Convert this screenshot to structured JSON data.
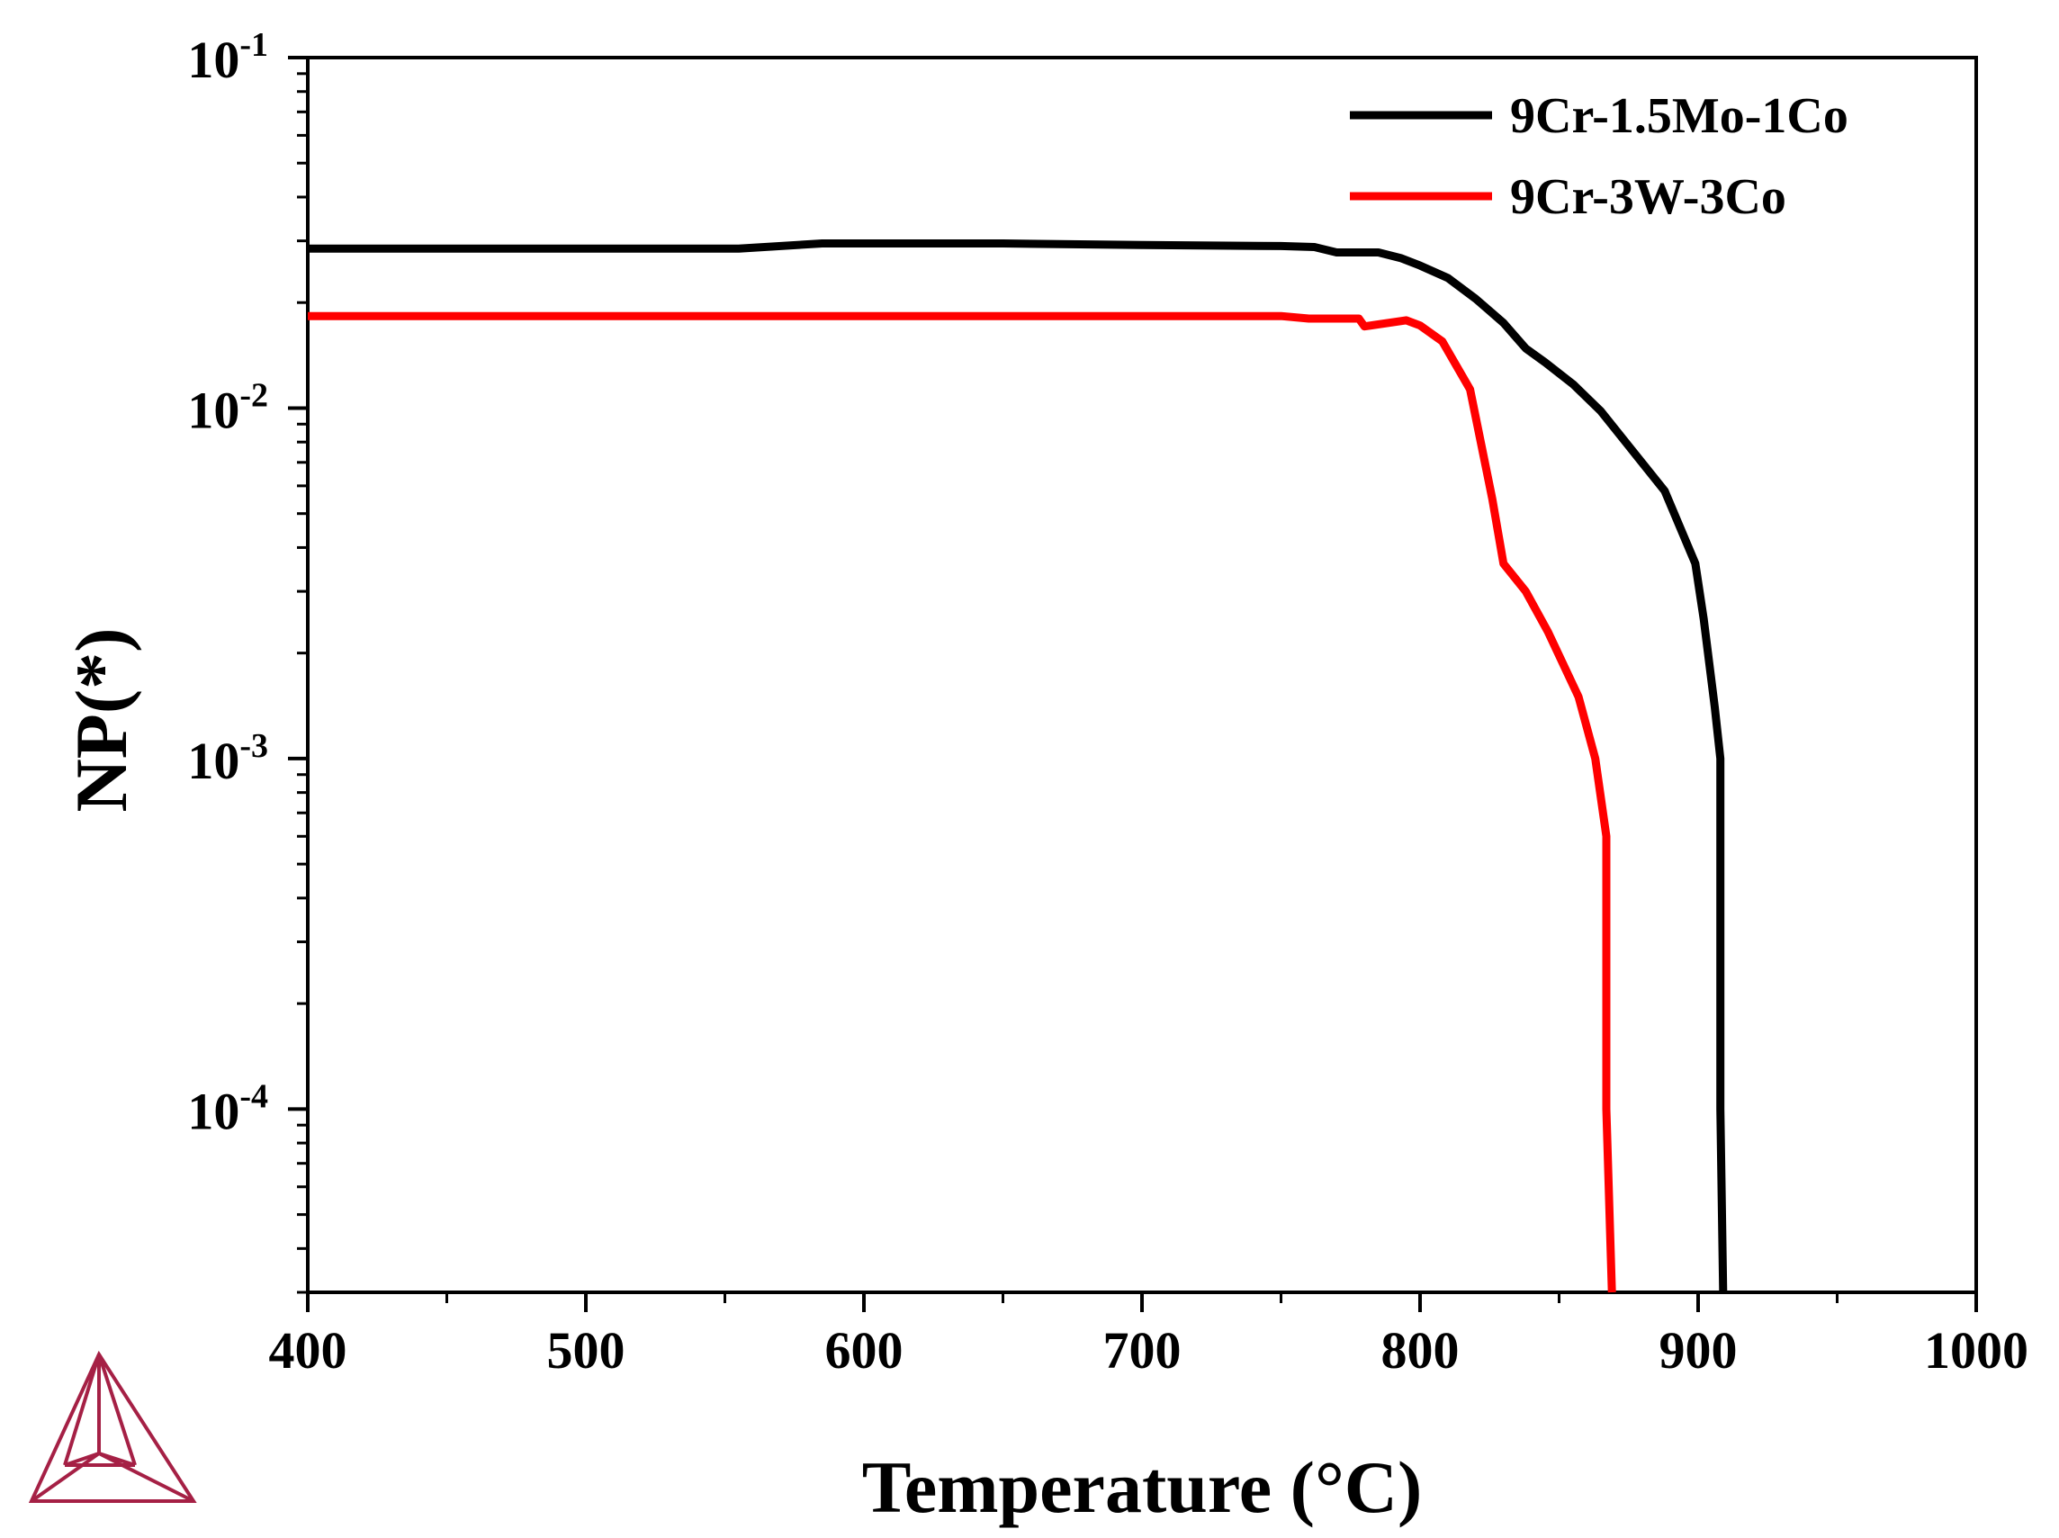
{
  "chart_data": {
    "type": "line",
    "title": "",
    "xlabel": "Temperature (°C)",
    "ylabel": "NP(*)",
    "xlim": [
      400,
      1000
    ],
    "ylim": [
      3e-05,
      0.1
    ],
    "yscale": "log",
    "x_ticks": [
      {
        "value": 400,
        "label": "400"
      },
      {
        "value": 500,
        "label": "500"
      },
      {
        "value": 600,
        "label": "600"
      },
      {
        "value": 700,
        "label": "700"
      },
      {
        "value": 800,
        "label": "800"
      },
      {
        "value": 900,
        "label": "900"
      },
      {
        "value": 1000,
        "label": "1000"
      }
    ],
    "y_ticks": [
      {
        "value": 0.1,
        "base": "10",
        "exp": "-1"
      },
      {
        "value": 0.01,
        "base": "10",
        "exp": "-2"
      },
      {
        "value": 0.001,
        "base": "10",
        "exp": "-3"
      },
      {
        "value": 0.0001,
        "base": "10",
        "exp": "-4"
      }
    ],
    "legend_position": "top-right",
    "series": [
      {
        "name": "9Cr-1.5Mo-1Co",
        "color": "#000000",
        "x": [
          400,
          500,
          555,
          585,
          650,
          700,
          750,
          762,
          770,
          785,
          793,
          800,
          810,
          820,
          830,
          838,
          845,
          855,
          865,
          875,
          888,
          899,
          902,
          906,
          908,
          908,
          909
        ],
        "y": [
          0.0285,
          0.0285,
          0.0285,
          0.0295,
          0.0295,
          0.0292,
          0.029,
          0.0288,
          0.0278,
          0.0278,
          0.0268,
          0.0255,
          0.0235,
          0.0205,
          0.0175,
          0.0148,
          0.0135,
          0.0117,
          0.0098,
          0.0078,
          0.0058,
          0.0036,
          0.0025,
          0.0014,
          0.001,
          0.0001,
          3e-05
        ]
      },
      {
        "name": "9Cr-3W-3Co",
        "color": "#ff0000",
        "x": [
          400,
          500,
          600,
          700,
          750,
          760,
          778,
          780,
          795,
          800,
          808,
          818,
          826,
          830,
          838,
          846,
          857,
          863,
          867,
          867,
          869
        ],
        "y": [
          0.0183,
          0.0183,
          0.0183,
          0.0183,
          0.0183,
          0.018,
          0.018,
          0.0171,
          0.0178,
          0.0172,
          0.0155,
          0.0113,
          0.0055,
          0.0036,
          0.003,
          0.0023,
          0.0015,
          0.001,
          0.0006,
          0.0001,
          3e-05
        ]
      }
    ]
  }
}
